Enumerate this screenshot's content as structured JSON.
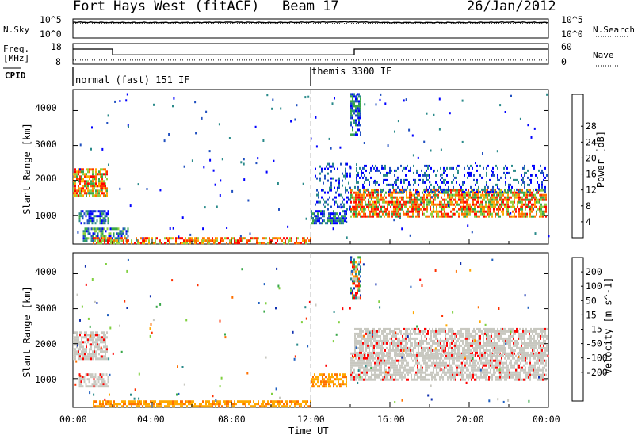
{
  "header": {
    "title": "Fort Hays West (fitACF)",
    "beam": "Beam 17",
    "date": "26/Jan/2012"
  },
  "strip_labels": {
    "nsky": "N.Sky",
    "nsearch": "N.Search",
    "freq": "Freq.",
    "freq_unit": "[MHz]",
    "nave": "Nave",
    "cpid": "CPID"
  },
  "strip_ticks": {
    "noise_left": [
      "10^5",
      "10^0"
    ],
    "noise_right": [
      "10^5",
      "10^0"
    ],
    "freq_left": [
      "18",
      "8"
    ],
    "freq_right": [
      "60",
      "0"
    ]
  },
  "cpid_modes": [
    "normal (fast) 151 IF",
    "themis 3300 IF"
  ],
  "chart_data": [
    {
      "type": "line",
      "name": "noise",
      "series": [
        {
          "name": "N.Sky",
          "values_log10": [
            4.3,
            4.2,
            4.2,
            4.2,
            4.3,
            4.2,
            4.3,
            4.4,
            4.2,
            4.2,
            4.2,
            4.3,
            4.2
          ]
        },
        {
          "name": "N.Search",
          "values_log10": [
            4.0,
            4.0,
            4.0,
            4.0,
            4.0,
            4.0,
            4.0,
            4.0,
            4.0,
            4.0,
            4.0,
            4.0,
            4.0
          ]
        }
      ],
      "x_hours": [
        0,
        2,
        4,
        6,
        8,
        10,
        12,
        14,
        16,
        18,
        20,
        22,
        24
      ],
      "ylim_log10": [
        0,
        5
      ]
    },
    {
      "type": "line",
      "name": "frequency",
      "series": [
        {
          "name": "Freq.",
          "x_hours": [
            0,
            2.0,
            2.0,
            14.2,
            14.2,
            24
          ],
          "values": [
            15.2,
            15.2,
            12.3,
            12.3,
            15.2,
            15.2
          ]
        },
        {
          "name": "Nave",
          "x_hours": [
            0,
            24
          ],
          "values": [
            10,
            10
          ]
        }
      ],
      "ylim_freq": [
        8,
        18
      ],
      "ylim_nave": [
        0,
        60
      ]
    },
    {
      "type": "heatmap",
      "name": "power",
      "x_range_hours": [
        0,
        24
      ],
      "y_range_km": [
        180,
        4600
      ],
      "yticks": [
        "1000",
        "2000",
        "3000",
        "4000"
      ],
      "ylabel": "Slant Range [km]",
      "colorbar": {
        "label": "Power [dB]",
        "ticks": [
          "4",
          "8",
          "12",
          "16",
          "20",
          "24",
          "28"
        ],
        "colors": [
          "#0000ff",
          "#2050c0",
          "#2a8a8a",
          "#3aa84a",
          "#90d040",
          "#ffa800",
          "#ff7000",
          "#ff3000",
          "#ff0000"
        ]
      },
      "regions": [
        {
          "x": [
            0.0,
            1.7
          ],
          "y": [
            1550,
            2350
          ],
          "level": "high"
        },
        {
          "x": [
            0.3,
            1.8
          ],
          "y": [
            750,
            1150
          ],
          "level": "mid"
        },
        {
          "x": [
            0.5,
            2.8
          ],
          "y": [
            250,
            650
          ],
          "level": "low"
        },
        {
          "x": [
            1.0,
            12.0
          ],
          "y": [
            200,
            380
          ],
          "level": "band"
        },
        {
          "x": [
            12.0,
            13.8
          ],
          "y": [
            750,
            1150
          ],
          "level": "mid"
        },
        {
          "x": [
            12.2,
            14.0
          ],
          "y": [
            1200,
            2500
          ],
          "level": "sparse"
        },
        {
          "x": [
            14.0,
            23.9
          ],
          "y": [
            950,
            1750
          ],
          "level": "high"
        },
        {
          "x": [
            14.2,
            23.9
          ],
          "y": [
            1650,
            2450
          ],
          "level": "sparse"
        },
        {
          "x": [
            14.0,
            14.5
          ],
          "y": [
            3300,
            4500
          ],
          "level": "mid"
        }
      ]
    },
    {
      "type": "heatmap",
      "name": "velocity",
      "x_range_hours": [
        0,
        24
      ],
      "y_range_km": [
        180,
        4600
      ],
      "yticks": [
        "1000",
        "2000",
        "3000",
        "4000"
      ],
      "xticks": [
        "00:00",
        "04:00",
        "08:00",
        "12:00",
        "16:00",
        "20:00",
        "00:00"
      ],
      "ylabel": "Slant Range [km]",
      "xlabel": "Time UT",
      "colorbar": {
        "label": "Velocity [m s^-1]",
        "ticks": [
          "200",
          "100",
          "50",
          "15",
          "-15",
          "-50",
          "-100",
          "-200"
        ],
        "colors": [
          "#1030b0",
          "#2060c0",
          "#2a8a8a",
          "#3aa84a",
          "#80d040",
          "#c8c8c0",
          "#ffa800",
          "#ff7000",
          "#ff3000",
          "#ff0000"
        ]
      },
      "regions": [
        {
          "x": [
            0.0,
            1.7
          ],
          "y": [
            1550,
            2350
          ],
          "level": "ground"
        },
        {
          "x": [
            0.3,
            1.8
          ],
          "y": [
            750,
            1150
          ],
          "level": "ground"
        },
        {
          "x": [
            1.0,
            12.0
          ],
          "y": [
            200,
            380
          ],
          "level": "negative"
        },
        {
          "x": [
            12.0,
            13.8
          ],
          "y": [
            750,
            1150
          ],
          "level": "negative"
        },
        {
          "x": [
            14.0,
            23.9
          ],
          "y": [
            950,
            1750
          ],
          "level": "ground"
        },
        {
          "x": [
            14.2,
            23.9
          ],
          "y": [
            1650,
            2450
          ],
          "level": "ground"
        },
        {
          "x": [
            14.0,
            14.5
          ],
          "y": [
            3300,
            4500
          ],
          "level": "mixed"
        }
      ]
    }
  ]
}
